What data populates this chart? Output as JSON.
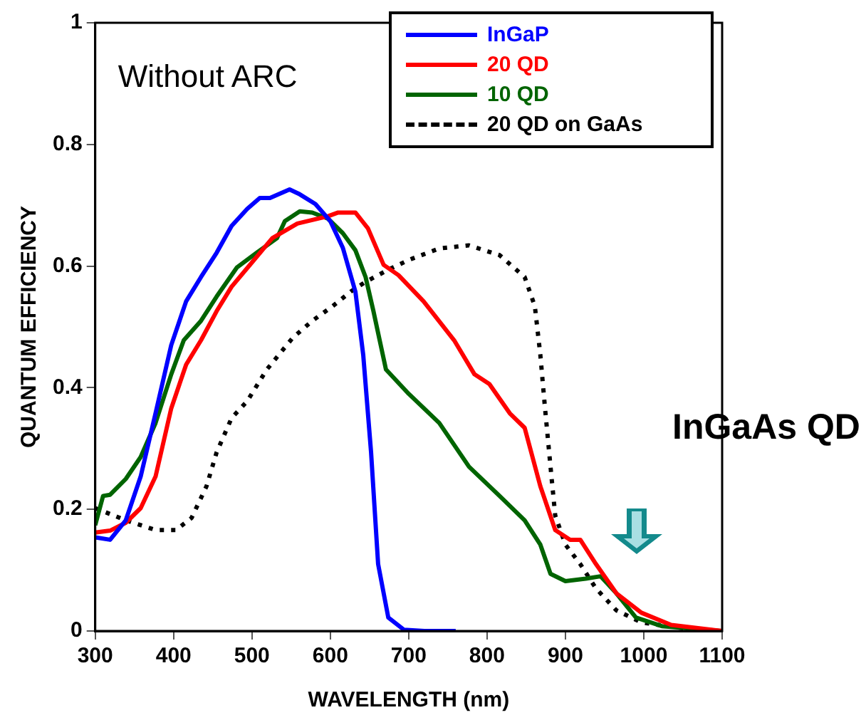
{
  "chart_data": {
    "type": "line",
    "xlabel": "WAVELENGTH (nm)",
    "ylabel": "QUANTUM EFFICIENCY",
    "xlim": [
      300,
      1100
    ],
    "xticks": [
      300,
      400,
      500,
      600,
      700,
      800,
      900,
      1000,
      1100
    ],
    "ylim": [
      0,
      1
    ],
    "yticks": [
      0,
      0.2,
      0.4,
      0.6,
      0.8,
      1
    ],
    "grid": false,
    "legend": "top right",
    "marker": "none",
    "annotations": [
      "Without ARC",
      "InGaAs QD"
    ],
    "series": [
      {
        "name": "InGaP",
        "color": "#0000ff",
        "line_style": "solid",
        "x": [
          300,
          319,
          339,
          358,
          377,
          397,
          416,
          435,
          455,
          474,
          494,
          510,
          523,
          548,
          561,
          581,
          600,
          616,
          632,
          642,
          652,
          661,
          674,
          694,
          720,
          760
        ],
        "values": [
          0.154,
          0.15,
          0.182,
          0.254,
          0.358,
          0.47,
          0.542,
          0.582,
          0.622,
          0.666,
          0.694,
          0.712,
          0.712,
          0.726,
          0.718,
          0.702,
          0.674,
          0.63,
          0.558,
          0.454,
          0.294,
          0.11,
          0.022,
          0.002,
          0,
          0
        ]
      },
      {
        "name": "20 QD",
        "color": "#ff0000",
        "line_style": "solid",
        "x": [
          300,
          319,
          339,
          358,
          377,
          397,
          416,
          435,
          455,
          474,
          500,
          526,
          558,
          597,
          610,
          632,
          648,
          668,
          687,
          719,
          758,
          784,
          803,
          829,
          848,
          868,
          887,
          906,
          919,
          939,
          965,
          997,
          1035,
          1100
        ],
        "values": [
          0.162,
          0.165,
          0.178,
          0.202,
          0.254,
          0.366,
          0.438,
          0.478,
          0.526,
          0.566,
          0.606,
          0.646,
          0.67,
          0.682,
          0.688,
          0.688,
          0.662,
          0.602,
          0.585,
          0.542,
          0.478,
          0.422,
          0.406,
          0.358,
          0.334,
          0.238,
          0.166,
          0.15,
          0.15,
          0.11,
          0.062,
          0.03,
          0.01,
          0
        ]
      },
      {
        "name": "10 QD",
        "color": "#006400",
        "line_style": "solid",
        "x": [
          300,
          310,
          319,
          339,
          358,
          377,
          397,
          413,
          435,
          455,
          481,
          506,
          532,
          542,
          561,
          577,
          597,
          616,
          632,
          645,
          655,
          663,
          671,
          700,
          739,
          777,
          816,
          848,
          868,
          881,
          900,
          926,
          945,
          965,
          990,
          1023,
          1100
        ],
        "values": [
          0.174,
          0.222,
          0.224,
          0.25,
          0.286,
          0.342,
          0.422,
          0.478,
          0.51,
          0.55,
          0.598,
          0.622,
          0.646,
          0.674,
          0.69,
          0.688,
          0.678,
          0.654,
          0.626,
          0.582,
          0.526,
          0.478,
          0.43,
          0.39,
          0.342,
          0.27,
          0.222,
          0.182,
          0.142,
          0.094,
          0.082,
          0.086,
          0.09,
          0.062,
          0.022,
          0.008,
          0
        ]
      },
      {
        "name": "20 QD on GaAs",
        "color": "#000000",
        "line_style": "dotted",
        "x": [
          300,
          339,
          377,
          403,
          423,
          442,
          455,
          474,
          494,
          519,
          552,
          577,
          603,
          626,
          645,
          674,
          700,
          739,
          777,
          816,
          848,
          861,
          868,
          874,
          881,
          887,
          900,
          919,
          939,
          965,
          997,
          1048,
          1100
        ],
        "values": [
          0.202,
          0.182,
          0.166,
          0.166,
          0.186,
          0.238,
          0.294,
          0.35,
          0.378,
          0.43,
          0.482,
          0.51,
          0.534,
          0.558,
          0.574,
          0.594,
          0.61,
          0.629,
          0.634,
          0.618,
          0.582,
          0.534,
          0.454,
          0.366,
          0.27,
          0.19,
          0.142,
          0.11,
          0.07,
          0.034,
          0.014,
          0.005,
          0
        ]
      }
    ]
  }
}
